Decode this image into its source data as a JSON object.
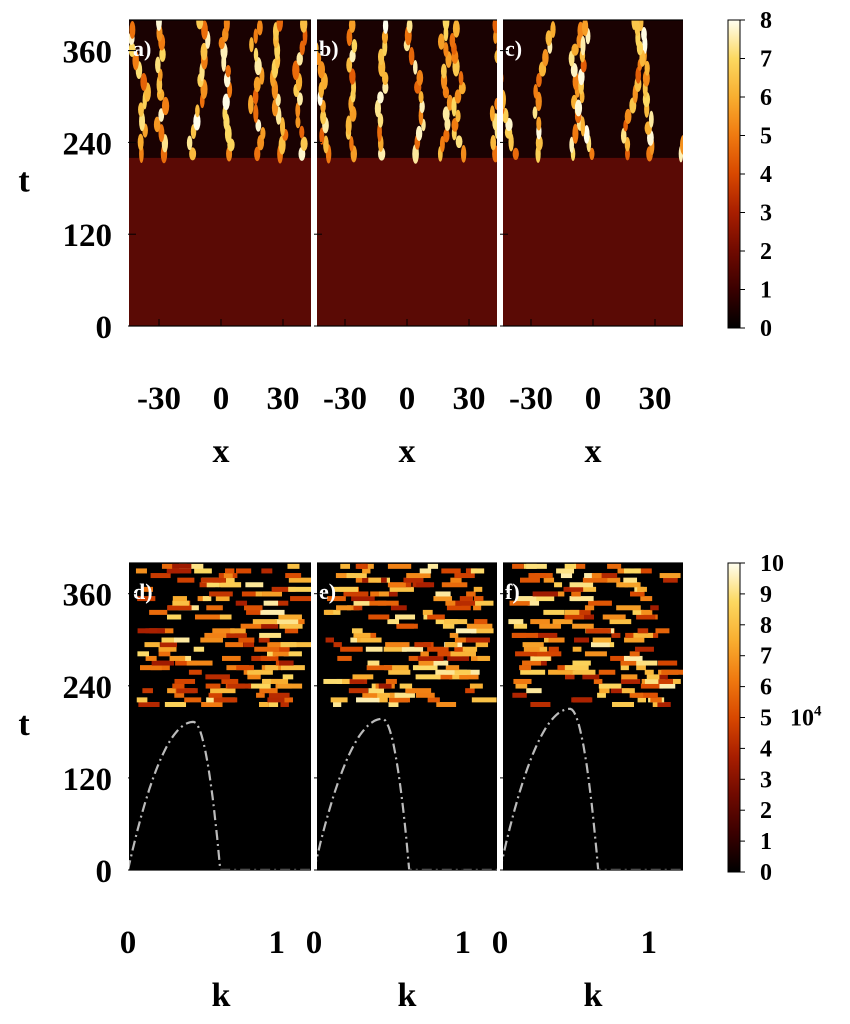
{
  "chart_data": [
    {
      "type": "heatmap",
      "panels": [
        {
          "label": "a)",
          "pattern_seed": 1
        },
        {
          "label": "b)",
          "pattern_seed": 2
        },
        {
          "label": "c)",
          "pattern_seed": 3
        }
      ],
      "xlabel": "x",
      "ylabel": "t",
      "xticks": [
        -30,
        0,
        30
      ],
      "xtick_labels": [
        "-30",
        "0",
        "30"
      ],
      "xlim": [
        -45,
        45
      ],
      "yticks": [
        0,
        120,
        240,
        360
      ],
      "ytick_labels": [
        "0",
        "120",
        "240",
        "360"
      ],
      "ylim": [
        0,
        400
      ],
      "pattern_onset_t": 225,
      "colorbar": {
        "min": 0,
        "max": 8,
        "ticks": [
          0,
          1,
          2,
          3,
          4,
          5,
          6,
          7,
          8
        ],
        "tick_labels": [
          "0",
          "1",
          "2",
          "3",
          "4",
          "5",
          "6",
          "7",
          "8"
        ],
        "multiplier": ""
      },
      "colormap": [
        "#000000",
        "#3a0000",
        "#700a00",
        "#a81e00",
        "#d84800",
        "#f07a10",
        "#f8ae30",
        "#fcd860",
        "#fffff0"
      ],
      "background_color": "#5a0a05"
    },
    {
      "type": "heatmap",
      "panels": [
        {
          "label": "d)",
          "pattern_seed": 4
        },
        {
          "label": "e)",
          "pattern_seed": 5
        },
        {
          "label": "f)",
          "pattern_seed": 6
        }
      ],
      "xlabel": "k",
      "ylabel": "t",
      "xticks": [
        0,
        1
      ],
      "xtick_labels": [
        "0",
        "1"
      ],
      "xlim": [
        0,
        1.25
      ],
      "yticks": [
        0,
        120,
        240,
        360
      ],
      "ytick_labels": [
        "0",
        "120",
        "240",
        "360"
      ],
      "ylim": [
        0,
        400
      ],
      "pattern_onset_t": 215,
      "colorbar": {
        "min": 0,
        "max": 10,
        "ticks": [
          0,
          1,
          2,
          3,
          4,
          5,
          6,
          7,
          8,
          9,
          10
        ],
        "tick_labels": [
          "0",
          "1",
          "2",
          "3",
          "4",
          "5",
          "6",
          "7",
          "8",
          "9",
          "10"
        ],
        "multiplier": "10^4"
      },
      "colormap": [
        "#000000",
        "#3a0000",
        "#700a00",
        "#a81e00",
        "#d84800",
        "#f07a10",
        "#f8ae30",
        "#fcd860",
        "#fffff0"
      ],
      "background_color": "#000000",
      "overlay_curve": {
        "style": "dash-dot",
        "color": "#bbbbbb",
        "peak_k": [
          0.44,
          0.46,
          0.47
        ],
        "peak_t": [
          193,
          197,
          210
        ],
        "cutoff_k": [
          0.62,
          0.64,
          0.66
        ]
      }
    }
  ]
}
